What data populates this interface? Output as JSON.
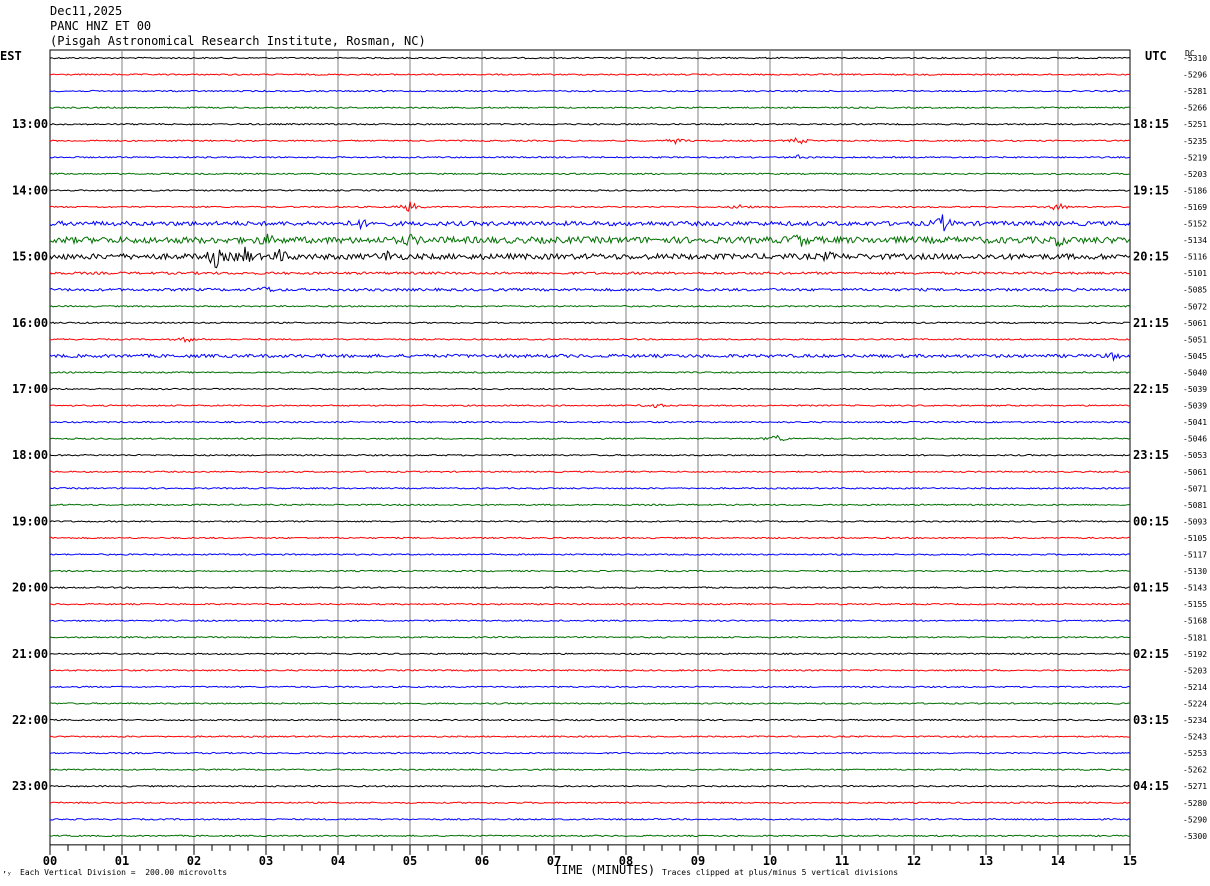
{
  "header": {
    "date": "Dec11,2025",
    "station": "PANC HNZ ET 00",
    "location": "(Pisgah Astronomical Research Institute, Rosman, NC)"
  },
  "left_tz": "EST",
  "right_tz": "UTC",
  "dc_header": "DC",
  "footer": {
    "mark": "’ʸ",
    "scale": "Each Vertical Division =  200.00 microvolts",
    "xlabel": "TIME (MINUTES)",
    "clip_note": "Traces clipped at plus/minus 5 vertical divisions"
  },
  "colors": {
    "cycle": [
      "#000000",
      "#ff0000",
      "#0000ff",
      "#007000"
    ],
    "grid": "#808080",
    "frame": "#000000"
  },
  "chart_data": {
    "type": "line",
    "title": "PANC HNZ ET 00",
    "xlabel": "TIME (MINUTES)",
    "ylabel": "",
    "xlim": [
      0,
      15
    ],
    "x_ticks": [
      "00",
      "01",
      "02",
      "03",
      "04",
      "05",
      "06",
      "07",
      "08",
      "09",
      "10",
      "11",
      "12",
      "13",
      "14",
      "15"
    ],
    "rows": 48,
    "minutes_per_row": 15,
    "left_labels": [
      "13:00",
      "14:00",
      "15:00",
      "16:00",
      "17:00",
      "18:00",
      "19:00",
      "20:00",
      "21:00",
      "22:00",
      "23:00"
    ],
    "right_labels": [
      "18:15",
      "19:15",
      "20:15",
      "21:15",
      "22:15",
      "23:15",
      "00:15",
      "01:15",
      "02:15",
      "03:15",
      "04:15"
    ],
    "label_row_start": 4,
    "label_row_step": 4,
    "dc_values": [
      "-5310",
      "-5296",
      "-5281",
      "-5266",
      "-5251",
      "-5235",
      "-5219",
      "-5203",
      "-5186",
      "-5169",
      "-5152",
      "-5134",
      "-5116",
      "-5101",
      "-5085",
      "-5072",
      "-5061",
      "-5051",
      "-5045",
      "-5040",
      "-5039",
      "-5039",
      "-5041",
      "-5046",
      "-5053",
      "-5061",
      "-5071",
      "-5081",
      "-5093",
      "-5105",
      "-5117",
      "-5130",
      "-5143",
      "-5155",
      "-5168",
      "-5181",
      "-5192",
      "-5203",
      "-5214",
      "-5224",
      "-5234",
      "-5243",
      "-5253",
      "-5262",
      "-5271",
      "-5280",
      "-5290",
      "-5300"
    ],
    "events": [
      {
        "row": 9,
        "minute": 5.0,
        "amp": 6
      },
      {
        "row": 5,
        "minute": 8.7,
        "amp": 3
      },
      {
        "row": 5,
        "minute": 10.4,
        "amp": 4
      },
      {
        "row": 6,
        "minute": 10.4,
        "amp": 2
      },
      {
        "row": 9,
        "minute": 9.6,
        "amp": 3
      },
      {
        "row": 9,
        "minute": 14.0,
        "amp": 5
      },
      {
        "row": 10,
        "minute": 4.3,
        "amp": 4
      },
      {
        "row": 10,
        "minute": 12.4,
        "amp": 8
      },
      {
        "row": 11,
        "minute": 3.0,
        "amp": 4
      },
      {
        "row": 11,
        "minute": 5.0,
        "amp": 4
      },
      {
        "row": 11,
        "minute": 10.4,
        "amp": 6
      },
      {
        "row": 11,
        "minute": 14.0,
        "amp": 4
      },
      {
        "row": 12,
        "minute": 2.3,
        "amp": 10
      },
      {
        "row": 12,
        "minute": 2.7,
        "amp": 9
      },
      {
        "row": 12,
        "minute": 3.2,
        "amp": 6
      },
      {
        "row": 12,
        "minute": 4.7,
        "amp": 5
      },
      {
        "row": 12,
        "minute": 10.8,
        "amp": 3
      },
      {
        "row": 14,
        "minute": 3.0,
        "amp": 3
      },
      {
        "row": 17,
        "minute": 1.9,
        "amp": 3
      },
      {
        "row": 18,
        "minute": 14.8,
        "amp": 4
      },
      {
        "row": 21,
        "minute": 8.4,
        "amp": 3
      },
      {
        "row": 23,
        "minute": 10.1,
        "amp": 5
      }
    ],
    "noise_rows": {
      "10": 2.2,
      "11": 3.2,
      "12": 2.8,
      "13": 1.2,
      "14": 1.3,
      "18": 1.6
    }
  }
}
